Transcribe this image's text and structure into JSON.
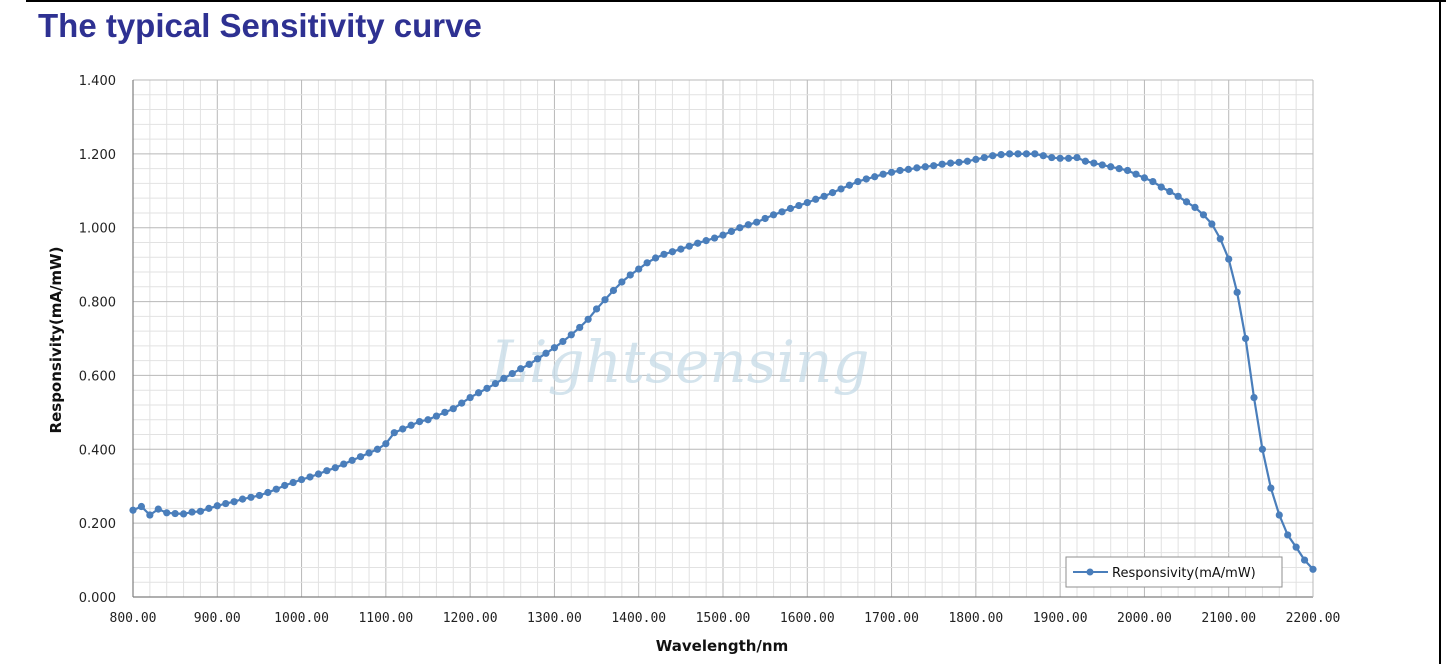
{
  "page": {
    "title": "The typical Sensitivity curve"
  },
  "chart_data": {
    "type": "line",
    "title": "",
    "xlabel": "Wavelength/nm",
    "ylabel": "Responsivity(mA/mW)",
    "xlim": [
      800,
      2200
    ],
    "ylim": [
      0,
      1.4
    ],
    "x_ticks": [
      "800.00",
      "900.00",
      "1000.00",
      "1100.00",
      "1200.00",
      "1300.00",
      "1400.00",
      "1500.00",
      "1600.00",
      "1700.00",
      "1800.00",
      "1900.00",
      "2000.00",
      "2100.00",
      "2200.00"
    ],
    "y_ticks": [
      "0.000",
      "0.200",
      "0.400",
      "0.600",
      "0.800",
      "1.000",
      "1.200",
      "1.400"
    ],
    "grid": true,
    "legend_position": "bottom-right",
    "watermark": "Lightsensing",
    "series": [
      {
        "name": "Responsivity(mA/mW)",
        "color": "#4a7ebb",
        "x": [
          800,
          810,
          820,
          830,
          840,
          850,
          860,
          870,
          880,
          890,
          900,
          910,
          920,
          930,
          940,
          950,
          960,
          970,
          980,
          990,
          1000,
          1010,
          1020,
          1030,
          1040,
          1050,
          1060,
          1070,
          1080,
          1090,
          1100,
          1110,
          1120,
          1130,
          1140,
          1150,
          1160,
          1170,
          1180,
          1190,
          1200,
          1210,
          1220,
          1230,
          1240,
          1250,
          1260,
          1270,
          1280,
          1290,
          1300,
          1310,
          1320,
          1330,
          1340,
          1350,
          1360,
          1370,
          1380,
          1390,
          1400,
          1410,
          1420,
          1430,
          1440,
          1450,
          1460,
          1470,
          1480,
          1490,
          1500,
          1510,
          1520,
          1530,
          1540,
          1550,
          1560,
          1570,
          1580,
          1590,
          1600,
          1610,
          1620,
          1630,
          1640,
          1650,
          1660,
          1670,
          1680,
          1690,
          1700,
          1710,
          1720,
          1730,
          1740,
          1750,
          1760,
          1770,
          1780,
          1790,
          1800,
          1810,
          1820,
          1830,
          1840,
          1850,
          1860,
          1870,
          1880,
          1890,
          1900,
          1910,
          1920,
          1930,
          1940,
          1950,
          1960,
          1970,
          1980,
          1990,
          2000,
          2010,
          2020,
          2030,
          2040,
          2050,
          2060,
          2070,
          2080,
          2090,
          2100,
          2110,
          2120,
          2130,
          2140,
          2150,
          2160,
          2170,
          2180,
          2190,
          2200
        ],
        "y": [
          0.235,
          0.245,
          0.222,
          0.238,
          0.228,
          0.226,
          0.225,
          0.23,
          0.232,
          0.24,
          0.247,
          0.253,
          0.258,
          0.265,
          0.27,
          0.275,
          0.283,
          0.292,
          0.302,
          0.31,
          0.318,
          0.325,
          0.333,
          0.342,
          0.35,
          0.36,
          0.37,
          0.38,
          0.39,
          0.4,
          0.415,
          0.445,
          0.455,
          0.465,
          0.475,
          0.48,
          0.49,
          0.5,
          0.51,
          0.525,
          0.54,
          0.553,
          0.565,
          0.578,
          0.592,
          0.605,
          0.618,
          0.63,
          0.645,
          0.66,
          0.675,
          0.692,
          0.71,
          0.73,
          0.752,
          0.78,
          0.805,
          0.83,
          0.853,
          0.872,
          0.888,
          0.905,
          0.918,
          0.928,
          0.935,
          0.942,
          0.95,
          0.958,
          0.965,
          0.972,
          0.98,
          0.99,
          1.0,
          1.008,
          1.015,
          1.025,
          1.035,
          1.043,
          1.052,
          1.06,
          1.068,
          1.077,
          1.085,
          1.095,
          1.105,
          1.115,
          1.125,
          1.132,
          1.138,
          1.145,
          1.15,
          1.155,
          1.158,
          1.162,
          1.165,
          1.168,
          1.172,
          1.175,
          1.177,
          1.18,
          1.185,
          1.19,
          1.195,
          1.198,
          1.2,
          1.2,
          1.2,
          1.2,
          1.195,
          1.19,
          1.188,
          1.188,
          1.19,
          1.18,
          1.175,
          1.17,
          1.165,
          1.16,
          1.155,
          1.145,
          1.135,
          1.125,
          1.11,
          1.098,
          1.085,
          1.07,
          1.055,
          1.035,
          1.01,
          0.97,
          0.915,
          0.825,
          0.7,
          0.54,
          0.4,
          0.295,
          0.222,
          0.168,
          0.135,
          0.1,
          0.075
        ]
      }
    ]
  }
}
